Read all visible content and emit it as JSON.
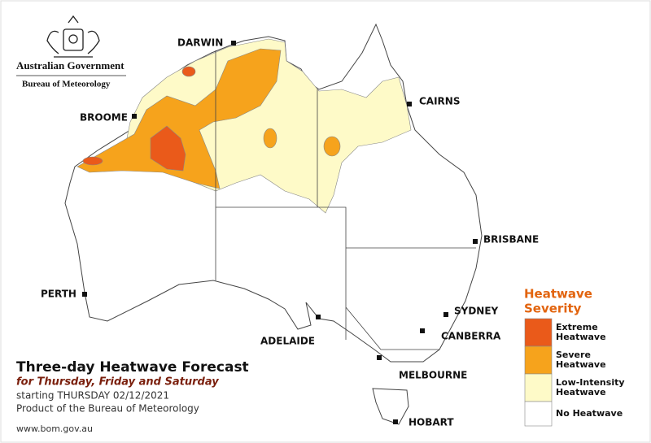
{
  "header": {
    "agency": "Australian Government",
    "bureau": "Bureau of Meteorology"
  },
  "cities": [
    "DARWIN",
    "CAIRNS",
    "BROOME",
    "BRISBANE",
    "PERTH",
    "SYDNEY",
    "CANBERRA",
    "ADELAIDE",
    "MELBOURNE",
    "HOBART"
  ],
  "legend": {
    "title_lines": [
      "Heatwave",
      "Severity"
    ],
    "items": [
      {
        "label_lines": [
          "Extreme",
          "Heatwave"
        ],
        "color": "#ea5a1a"
      },
      {
        "label_lines": [
          "Severe",
          "Heatwave"
        ],
        "color": "#f6a31c"
      },
      {
        "label_lines": [
          "Low-Intensity",
          "Heatwave"
        ],
        "color": "#fefac8"
      },
      {
        "label_lines": [
          "No Heatwave"
        ],
        "color": "#ffffff"
      }
    ]
  },
  "title_block": {
    "title": "Three-day Heatwave Forecast",
    "subtitle": "for Thursday, Friday and Saturday",
    "starting": "starting THURSDAY 02/12/2021",
    "product": "Product of the Bureau of Meteorology"
  },
  "footer": {
    "url": "www.bom.gov.au"
  }
}
